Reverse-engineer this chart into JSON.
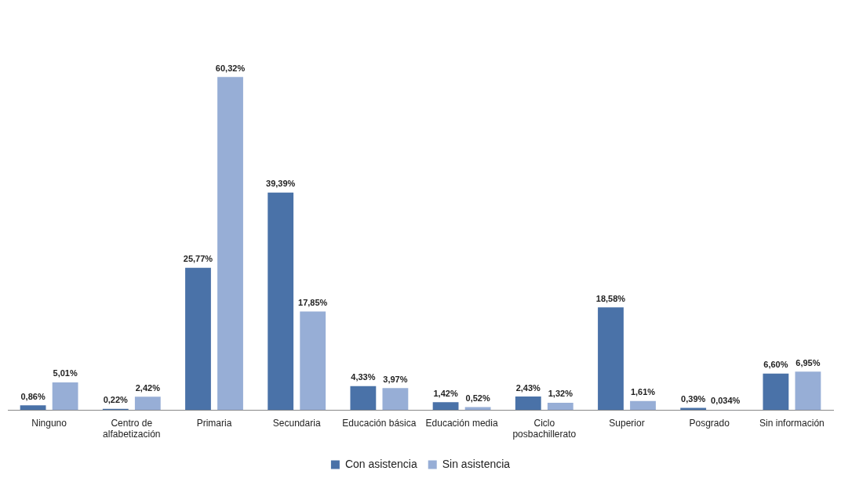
{
  "chart_data": {
    "type": "bar",
    "categories": [
      "Ninguno",
      "Centro de alfabetización",
      "Primaria",
      "Secundaria",
      "Educación básica",
      "Educación media",
      "Ciclo posbachillerato",
      "Superior",
      "Posgrado",
      "Sin información"
    ],
    "series": [
      {
        "name": "Con asistencia",
        "color": "#4a72a8",
        "values": [
          0.86,
          0.22,
          25.77,
          39.39,
          4.33,
          1.42,
          2.43,
          18.58,
          0.39,
          6.6
        ],
        "value_labels": [
          "0,86%",
          "0,22%",
          "25,77%",
          "39,39%",
          "4,33%",
          "1,42%",
          "2,43%",
          "18,58%",
          "0,39%",
          "6,60%"
        ]
      },
      {
        "name": "Sin asistencia",
        "color": "#97aed6",
        "values": [
          5.01,
          2.42,
          60.32,
          17.85,
          3.97,
          0.52,
          1.32,
          1.61,
          0.034,
          6.95
        ],
        "value_labels": [
          "5,01%",
          "2,42%",
          "60,32%",
          "17,85%",
          "3,97%",
          "0,52%",
          "1,32%",
          "1,61%",
          "0,034%",
          "6,95%"
        ]
      }
    ],
    "legend": "bottom"
  }
}
